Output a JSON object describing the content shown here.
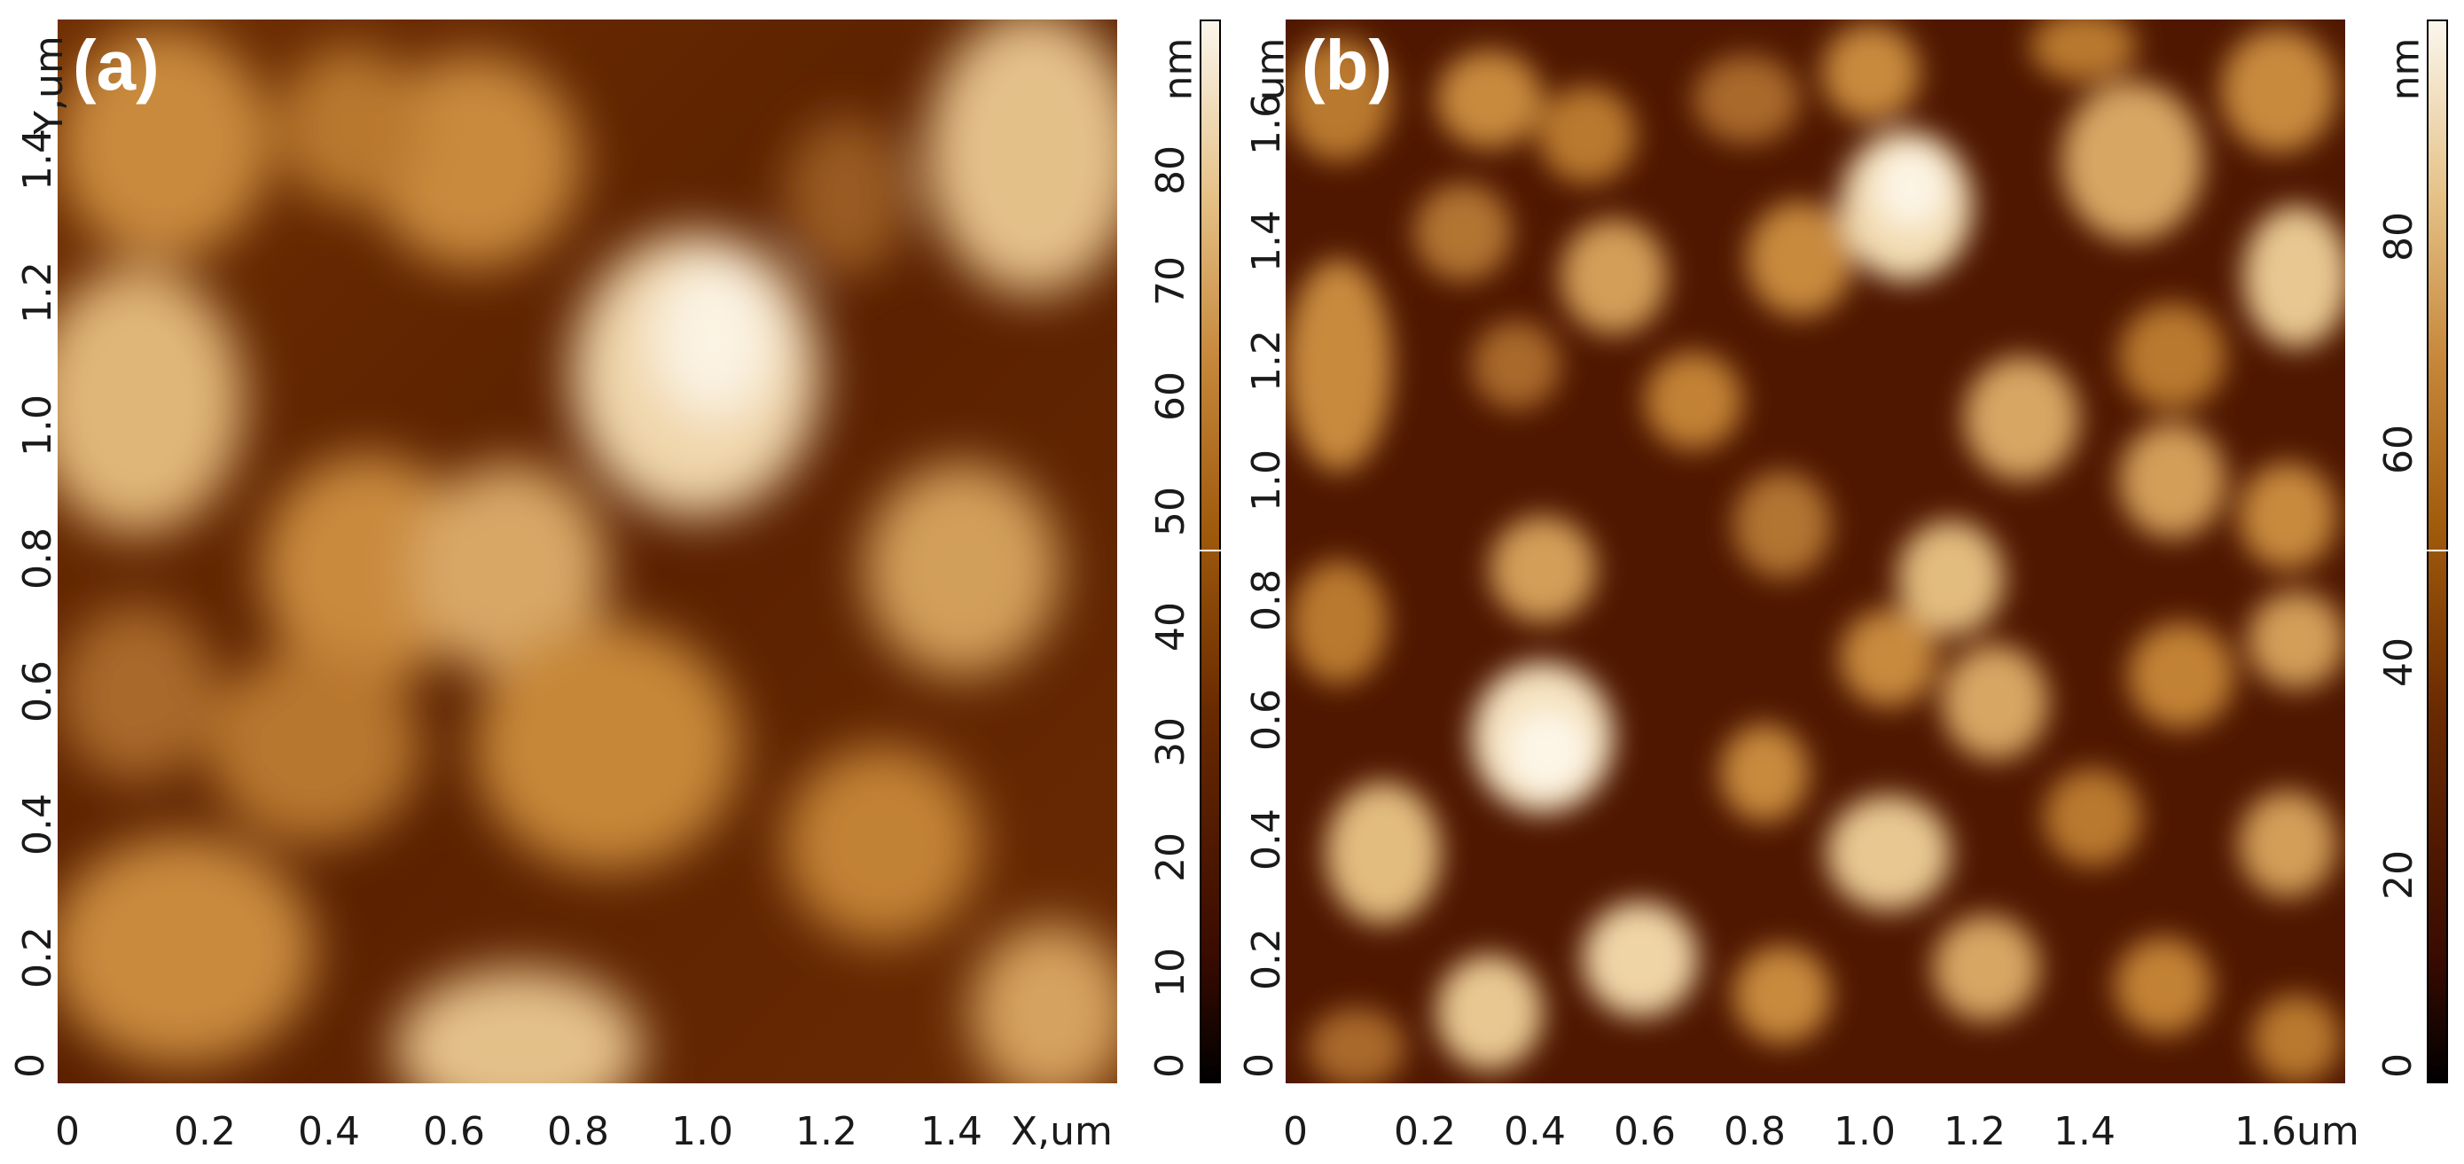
{
  "panel_a": {
    "label": "(a)",
    "y_axis_title": "Y,um",
    "y_ticks": [
      "0",
      "0.2",
      "0.4",
      "0.6",
      "0.8",
      "1.0",
      "1.2",
      "1.4"
    ],
    "x_ticks": [
      "0",
      "0.2",
      "0.4",
      "0.6",
      "0.8",
      "1.0",
      "1.2",
      "1.4"
    ],
    "x_axis_title": "X,um",
    "colorbar_unit": "nm",
    "colorbar_ticks": [
      "0",
      "10",
      "20",
      "30",
      "40",
      "50",
      "60",
      "70",
      "80"
    ]
  },
  "panel_b": {
    "label": "(b)",
    "y_axis_title": "um",
    "y_ticks": [
      "0",
      "0.2",
      "0.4",
      "0.6",
      "0.8",
      "1.0",
      "1.2",
      "1.4",
      "1.6"
    ],
    "x_ticks": [
      "0",
      "0.2",
      "0.4",
      "0.6",
      "0.8",
      "1.0",
      "1.2",
      "1.4",
      "1.6um"
    ],
    "colorbar_unit": "nm",
    "colorbar_ticks": [
      "0",
      "20",
      "40",
      "60",
      "80"
    ]
  },
  "colors": {
    "dark": "#3a0b00",
    "mid": "#a05a0c",
    "light": "#fbf6ec"
  }
}
